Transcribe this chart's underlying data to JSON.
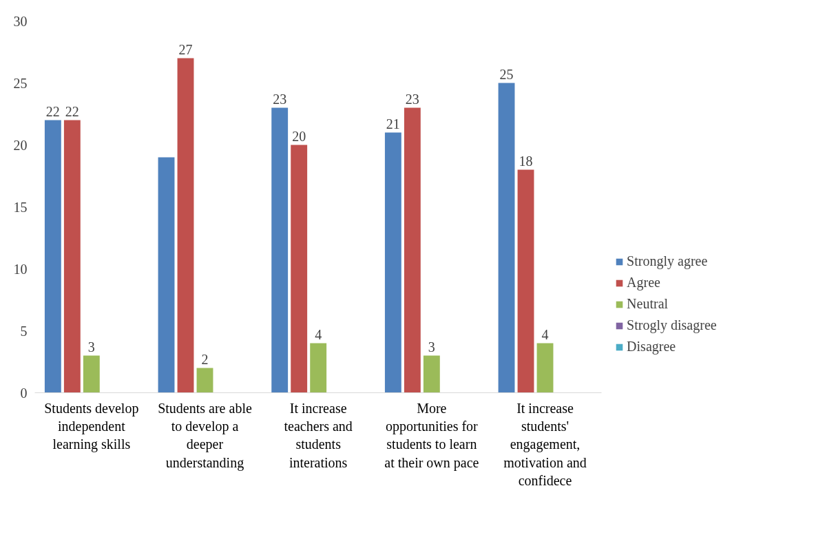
{
  "chart_data": {
    "type": "bar",
    "categories": [
      "Students develop independent learning skills",
      "Students are able to develop a deeper understanding",
      "It increase teachers and students interations",
      "More opportunities for students to learn at their own pace",
      "It increase students' engagement, motivation and confidece"
    ],
    "series": [
      {
        "name": "Strongly agree",
        "color": "#4f81bd",
        "values": [
          22,
          19,
          23,
          21,
          25
        ],
        "value_labels": [
          "22",
          null,
          "23",
          "21",
          "25"
        ]
      },
      {
        "name": "Agree",
        "color": "#c0504d",
        "values": [
          22,
          27,
          20,
          23,
          18
        ],
        "value_labels": [
          "22",
          "27",
          "20",
          "23",
          "18"
        ]
      },
      {
        "name": "Neutral",
        "color": "#9bbb59",
        "values": [
          3,
          2,
          4,
          3,
          4
        ],
        "value_labels": [
          "3",
          "2",
          "4",
          "3",
          "4"
        ]
      },
      {
        "name": "Strogly disagree",
        "color": "#8064a2",
        "values": [
          null,
          null,
          null,
          null,
          null
        ]
      },
      {
        "name": "Disagree",
        "color": "#4bacc6",
        "values": [
          null,
          null,
          null,
          null,
          null
        ]
      }
    ],
    "ylim": [
      0,
      30
    ],
    "yticks": [
      0,
      5,
      10,
      15,
      20,
      25,
      30
    ],
    "grid": false,
    "legend": "right"
  }
}
